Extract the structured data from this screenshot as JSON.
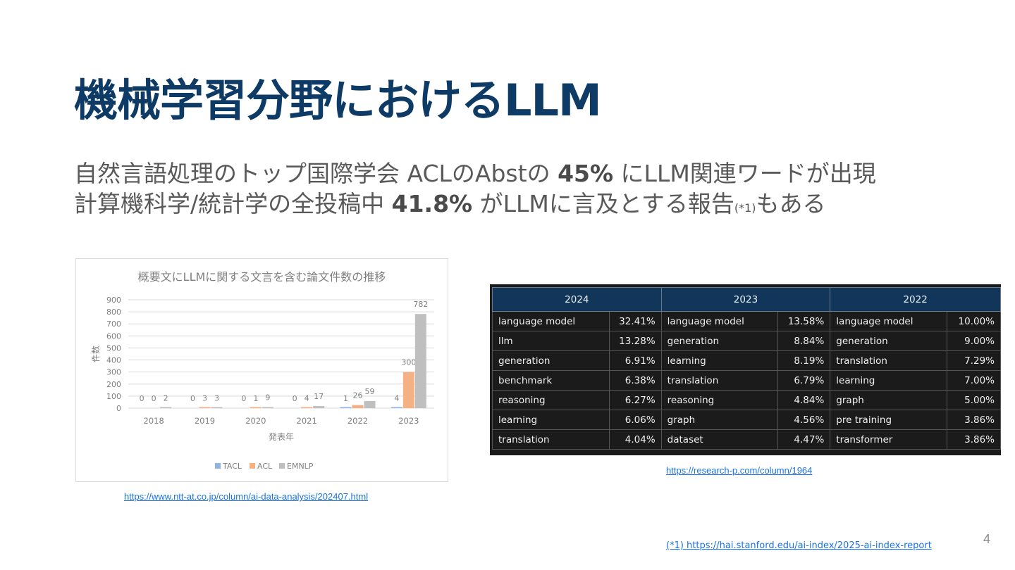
{
  "slide": {
    "title": "機械学習分野におけるLLM",
    "line1": {
      "pre": "自然言語処理のトップ国際学会 ACLのAbstの ",
      "bold": "45%",
      "post": " にLLM関連ワードが出現"
    },
    "line2": {
      "pre": "計算機科学/統計学の全投稿中 ",
      "bold": "41.8%",
      "post": " がLLMに言及とする報告",
      "note": "(*1)",
      "tail": "もある"
    },
    "link_chart": "https://www.ntt-at.co.jp/column/ai-data-analysis/202407.html",
    "link_table": "https://research-p.com/column/1964",
    "footnote": "(*1) https://hai.stanford.edu/ai-index/2025-ai-index-report",
    "page_number": "4"
  },
  "chart_data": {
    "type": "bar",
    "title": "概要文にLLMに関する文言を含む論文件数の推移",
    "xlabel": "発表年",
    "ylabel": "件数",
    "categories": [
      "2018",
      "2019",
      "2020",
      "2021",
      "2022",
      "2023"
    ],
    "ylim": [
      0,
      900
    ],
    "yticks": [
      0,
      100,
      200,
      300,
      400,
      500,
      600,
      700,
      800,
      900
    ],
    "grid": true,
    "legend_position": "bottom",
    "series": [
      {
        "name": "TACL",
        "color": "#8fb4e3",
        "values": [
          0,
          0,
          0,
          0,
          1,
          4
        ]
      },
      {
        "name": "ACL",
        "color": "#f4b183",
        "values": [
          0,
          3,
          1,
          4,
          26,
          300
        ]
      },
      {
        "name": "EMNLP",
        "color": "#bfbfbf",
        "values": [
          2,
          3,
          9,
          17,
          59,
          782
        ]
      }
    ]
  },
  "keyword_table": {
    "years": [
      "2024",
      "2023",
      "2022"
    ],
    "rows": [
      [
        [
          "language model",
          "32.41%"
        ],
        [
          "language model",
          "13.58%"
        ],
        [
          "language model",
          "10.00%"
        ]
      ],
      [
        [
          "llm",
          "13.28%"
        ],
        [
          "generation",
          "8.84%"
        ],
        [
          "generation",
          "9.00%"
        ]
      ],
      [
        [
          "generation",
          "6.91%"
        ],
        [
          "learning",
          "8.19%"
        ],
        [
          "translation",
          "7.29%"
        ]
      ],
      [
        [
          "benchmark",
          "6.38%"
        ],
        [
          "translation",
          "6.79%"
        ],
        [
          "learning",
          "7.00%"
        ]
      ],
      [
        [
          "reasoning",
          "6.27%"
        ],
        [
          "reasoning",
          "4.84%"
        ],
        [
          "graph",
          "5.00%"
        ]
      ],
      [
        [
          "learning",
          "6.06%"
        ],
        [
          "graph",
          "4.56%"
        ],
        [
          "pre training",
          "3.86%"
        ]
      ],
      [
        [
          "translation",
          "4.04%"
        ],
        [
          "dataset",
          "4.47%"
        ],
        [
          "transformer",
          "3.86%"
        ]
      ]
    ]
  }
}
